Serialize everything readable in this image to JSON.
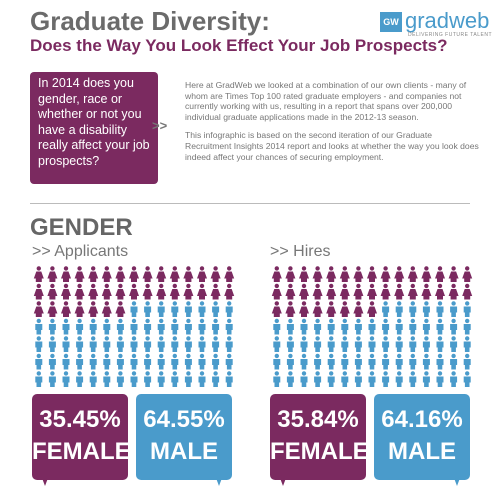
{
  "header": {
    "title": "Graduate Diversity:",
    "subtitle": "Does the Way You Look Effect Your Job Prospects?"
  },
  "logo": {
    "badge": "GW",
    "name": "gradweb",
    "tagline": "DELIVERING FUTURE TALENT"
  },
  "question": "In 2014 does you gender, race or whether or not you have a disability really affect your job prospects?",
  "arrow": ">>",
  "intro": [
    "Here at GradWeb we looked at a combination of our own clients - many of whom are Times Top 100 rated graduate employers - and companies not currently working with us, resulting in a report that spans over 200,000 individual graduate applications made in the 2012-13 season.",
    "This infographic is based on the second iteration of our Graduate Recruitment Insights 2014 report and looks at whether the way you look does indeed affect your chances of securing employment."
  ],
  "section": "GENDER",
  "panels": [
    {
      "heading": ">> Applicants",
      "female": {
        "value": 35.45,
        "label": "35.45%",
        "name": "FEMALE",
        "color": "#7b2a60"
      },
      "male": {
        "value": 64.55,
        "label": "64.55%",
        "name": "MALE",
        "color": "#4a9bcb"
      }
    },
    {
      "heading": ">> Hires",
      "female": {
        "value": 35.84,
        "label": "35.84%",
        "name": "FEMALE",
        "color": "#7b2a60"
      },
      "male": {
        "value": 64.16,
        "label": "64.16%",
        "name": "MALE",
        "color": "#4a9bcb"
      }
    }
  ]
}
